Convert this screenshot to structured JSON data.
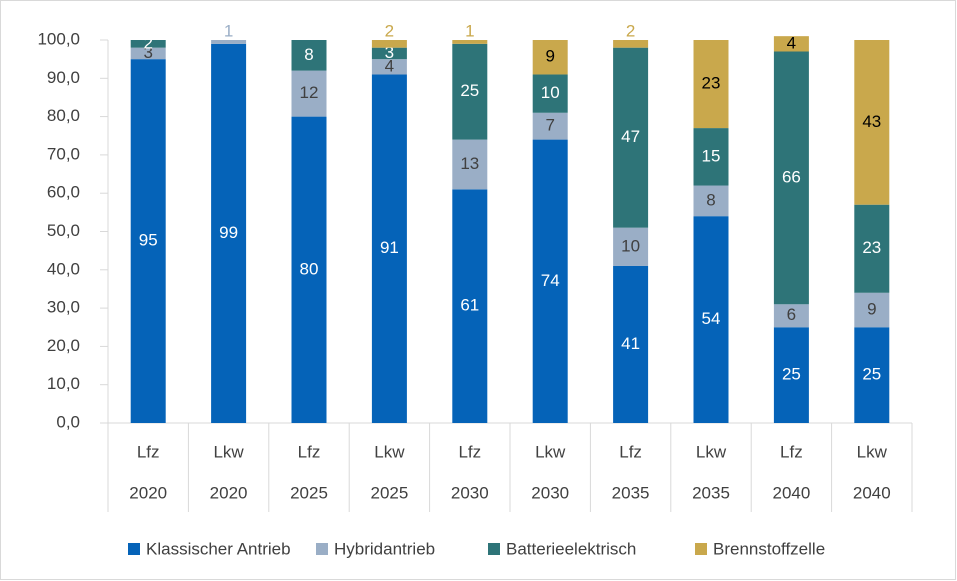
{
  "chart_data": {
    "type": "stacked_bar",
    "categories": [
      "Lfz",
      "Lkw",
      "Lfz",
      "Lkw",
      "Lfz",
      "Lkw",
      "Lfz",
      "Lkw",
      "Lfz",
      "Lkw"
    ],
    "category_groups": [
      "2020",
      "2020",
      "2025",
      "2025",
      "2030",
      "2030",
      "2035",
      "2035",
      "2040",
      "2040"
    ],
    "series": [
      {
        "name": "Klassischer Antrieb",
        "color": "#0563b8",
        "label_color": "#ffffff",
        "values": [
          95,
          99,
          80,
          91,
          61,
          74,
          41,
          54,
          25,
          25
        ]
      },
      {
        "name": "Hybridantrieb",
        "color": "#9aaec6",
        "label_color": "#404040",
        "values": [
          3,
          1,
          12,
          4,
          13,
          7,
          10,
          8,
          6,
          9
        ]
      },
      {
        "name": "Batterieelektrisch",
        "color": "#2e7478",
        "label_color": "#ffffff",
        "values": [
          2,
          null,
          8,
          3,
          25,
          10,
          47,
          15,
          66,
          23
        ]
      },
      {
        "name": "Brennstoffzelle",
        "color": "#c9a84c",
        "label_color": "#000000",
        "values": [
          null,
          null,
          null,
          2,
          1,
          9,
          2,
          23,
          4,
          43
        ]
      }
    ],
    "ylim": [
      0,
      100
    ],
    "yticks": [
      {
        "value": 0,
        "label": "0,0"
      },
      {
        "value": 10,
        "label": "10,0"
      },
      {
        "value": 20,
        "label": "20,0"
      },
      {
        "value": 30,
        "label": "30,0"
      },
      {
        "value": 40,
        "label": "40,0"
      },
      {
        "value": 50,
        "label": "50,0"
      },
      {
        "value": 60,
        "label": "60,0"
      },
      {
        "value": 70,
        "label": "70,0"
      },
      {
        "value": 80,
        "label": "80,0"
      },
      {
        "value": 90,
        "label": "90,0"
      },
      {
        "value": 100,
        "label": "100,0"
      }
    ],
    "legend": "bottom"
  }
}
